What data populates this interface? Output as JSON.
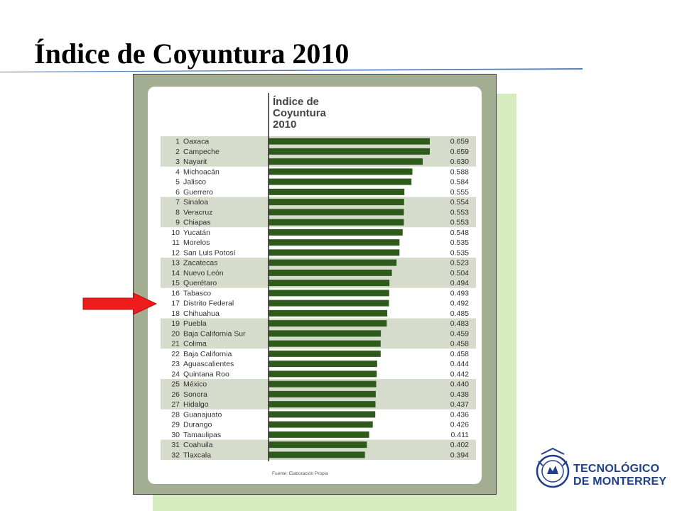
{
  "slide": {
    "title": "Índice de Coyuntura 2010"
  },
  "chart_data": {
    "type": "bar",
    "orientation": "horizontal",
    "title_lines": [
      "Índice de",
      "Coyuntura",
      "2010"
    ],
    "source": "Fuente: Elaboración Propia",
    "xlim": [
      0,
      0.7
    ],
    "grid": false,
    "ranks": [
      "1",
      "2",
      "3",
      "4",
      "5",
      "6",
      "7",
      "8",
      "9",
      "10",
      "11",
      "12",
      "13",
      "14",
      "15",
      "16",
      "17",
      "18",
      "19",
      "20",
      "21",
      "22",
      "23",
      "24",
      "25",
      "26",
      "27",
      "28",
      "29",
      "30",
      "31",
      "32"
    ],
    "categories": [
      "Oaxaca",
      "Campeche",
      "Nayarit",
      "Michoacán",
      "Jalisco",
      "Guerrero",
      "Sinaloa",
      "Veracruz",
      "Chiapas",
      "Yucatán",
      "Morelos",
      "San Luis Potosí",
      "Zacatecas",
      "Nuevo León",
      "Querétaro",
      "Tabasco",
      "Distrito Federal",
      "Chihuahua",
      "Puebla",
      "Baja California Sur",
      "Colima",
      "Baja California",
      "Aguascalientes",
      "Quintana Roo",
      "México",
      "Sonora",
      "Hidalgo",
      "Guanajuato",
      "Durango",
      "Tamaulipas",
      "Coahuila",
      "Tlaxcala"
    ],
    "values": [
      0.659,
      0.659,
      0.63,
      0.588,
      0.584,
      0.555,
      0.554,
      0.553,
      0.553,
      0.548,
      0.535,
      0.535,
      0.523,
      0.504,
      0.494,
      0.493,
      0.492,
      0.485,
      0.483,
      0.459,
      0.458,
      0.458,
      0.444,
      0.442,
      0.44,
      0.438,
      0.437,
      0.436,
      0.426,
      0.411,
      0.402,
      0.394
    ],
    "value_labels": [
      "0.659",
      "0.659",
      "0.630",
      "0.588",
      "0.584",
      "0.555",
      "0.554",
      "0.553",
      "0.553",
      "0.548",
      "0.535",
      "0.535",
      "0.523",
      "0.504",
      "0.494",
      "0.493",
      "0.492",
      "0.485",
      "0.483",
      "0.459",
      "0.458",
      "0.458",
      "0.444",
      "0.442",
      "0.440",
      "0.438",
      "0.437",
      "0.436",
      "0.426",
      "0.411",
      "0.402",
      "0.394"
    ],
    "highlighted_category": "Distrito Federal",
    "colors": {
      "bar": "#2e5a1c",
      "band": "#d5dccb",
      "text": "#333333",
      "axis": "#2b2b2b"
    }
  },
  "logo": {
    "line1": "TECNOLÓGICO",
    "line2": "DE MONTERREY"
  },
  "colors": {
    "title_rule": "#4f7fbf",
    "arrow": "#ee1c1c",
    "frame": "#a3ad92",
    "shadow": "#d6ebc0",
    "logo": "#1f3f8a"
  }
}
